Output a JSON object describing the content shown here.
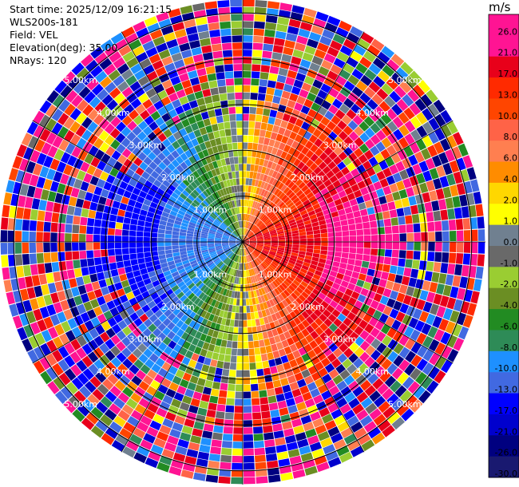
{
  "info": {
    "start_time": "Start time: 2025/12/09 16:21:15",
    "instrument": "WLS200s-181",
    "field": "Field: VEL",
    "elevation": "Elevation(deg): 35.00",
    "nrays": "NRays: 120"
  },
  "colorbar": {
    "unit": "m/s",
    "ticks": [
      "26.0",
      "21.0",
      "17.0",
      "13.0",
      "10.0",
      "8.0",
      "6.0",
      "4.0",
      "2.0",
      "1.0",
      "0.0",
      "-1.0",
      "-2.0",
      "-4.0",
      "-6.0",
      "-8.0",
      "-10.0",
      "-13.0",
      "-17.0",
      "-21.0",
      "-26.0",
      "-30.0"
    ],
    "colors": [
      "#ff1493",
      "#ff1493",
      "#e8001a",
      "#ff2a00",
      "#ff4500",
      "#ff6347",
      "#ff7f50",
      "#ff8c00",
      "#ffd700",
      "#ffff00",
      "#708090",
      "#696969",
      "#9acd32",
      "#6b8e23",
      "#228b22",
      "#2e8b57",
      "#1e90ff",
      "#4169e1",
      "#0000ff",
      "#0000cd",
      "#000080",
      "#191970"
    ]
  },
  "chart_data": {
    "type": "heatmap",
    "projection": "polar PPI",
    "field": "VEL",
    "units": "m/s",
    "nrays": 120,
    "range_rings_km": [
      1.0,
      2.0,
      3.0,
      4.0,
      5.0
    ],
    "ring_labels": [
      "1.00km",
      "2.00km",
      "3.00km",
      "4.00km",
      "5.00km"
    ],
    "max_range_km": 5.3,
    "colorbar_range": [
      -30.0,
      26.0
    ]
  }
}
